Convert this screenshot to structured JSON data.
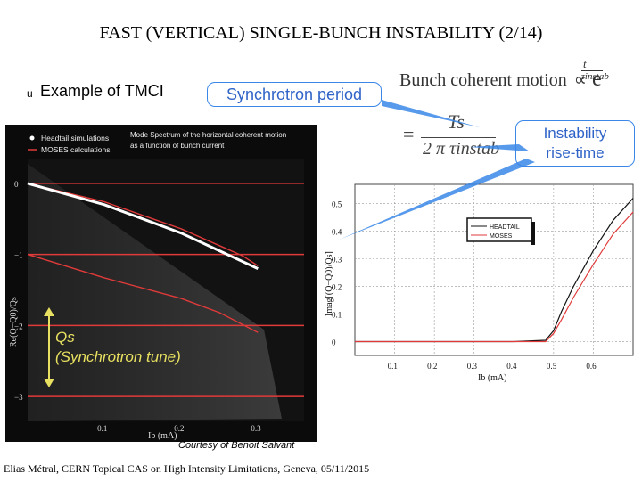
{
  "slide": {
    "title": "FAST (VERTICAL) SINGLE-BUNCH INSTABILITY (2/14)",
    "bullet": "u",
    "example": "Example of TMCI",
    "synchrotron_period": "Synchrotron period",
    "instability_risetime": [
      "Instability",
      "rise-time"
    ],
    "bunch_motion": {
      "text": "Bunch coherent motion",
      "proportional": "∝",
      "exp_base": "e",
      "exp_numerator": "t",
      "exp_denominator": "τinstab"
    },
    "formula": {
      "equals": "=",
      "numerator": "Ts",
      "denominator": "2 π τinstab"
    },
    "qs_label": [
      "Qs",
      "(Synchrotron tune)"
    ],
    "courtesy": "Courtesy of Benoit Salvant",
    "footer": "Elias Métral, CERN Topical CAS on High Intensity Limitations, Geneva, 05/11/2015"
  },
  "chart_data": [
    {
      "type": "scatter",
      "panel": "left",
      "legend": [
        "Headtail simulations",
        "MOSES calculations"
      ],
      "legend_header": [
        "Mode Spectrum of the horizontal coherent motion",
        "as a function of bunch current"
      ],
      "xlabel": "Ib (mA)",
      "ylabel": "Re(Q−Q0)/Qs",
      "xticks": [
        "0.1",
        "0.2",
        "0.3"
      ],
      "yticks": [
        "0",
        "−1",
        "−2",
        "−3"
      ],
      "xlim": [
        0,
        0.36
      ],
      "ylim": [
        -3.35,
        0.35
      ],
      "mode_lines": [
        0,
        -1,
        -2,
        -3
      ],
      "series": [
        {
          "name": "MOSES calculations",
          "x": [
            0,
            0.1,
            0.2,
            0.25,
            0.3
          ],
          "y": [
            -1.0,
            -1.33,
            -1.62,
            -1.82,
            -2.1
          ]
        },
        {
          "name": "MOSES calculations",
          "x": [
            0,
            0.1,
            0.2,
            0.28,
            0.3
          ],
          "y": [
            0.0,
            -0.26,
            -0.64,
            -1.02,
            -1.16
          ]
        },
        {
          "name": "Headtail simulations",
          "x": [
            0,
            0.1,
            0.2,
            0.3
          ],
          "y": [
            0.0,
            -0.3,
            -0.7,
            -1.2
          ]
        }
      ]
    },
    {
      "type": "line",
      "panel": "right",
      "legend": [
        "HEADTAIL",
        "MOSES"
      ],
      "xlabel": "Ib (mA)",
      "ylabel": "Imag[(Q−Q0)/Qs]",
      "xticks": [
        "0.1",
        "0.2",
        "0.3",
        "0.4",
        "0.5",
        "0.6"
      ],
      "yticks": [
        "0",
        "0.1",
        "0.2",
        "0.3",
        "0.4",
        "0.5"
      ],
      "xlim": [
        0,
        0.7
      ],
      "ylim": [
        -0.05,
        0.57
      ],
      "series": [
        {
          "name": "HEADTAIL",
          "x": [
            0,
            0.1,
            0.2,
            0.3,
            0.4,
            0.48,
            0.5,
            0.52,
            0.55,
            0.6,
            0.65,
            0.7
          ],
          "y": [
            0,
            0,
            0,
            0,
            0,
            0.005,
            0.04,
            0.11,
            0.2,
            0.33,
            0.44,
            0.52
          ]
        },
        {
          "name": "MOSES",
          "x": [
            0,
            0.1,
            0.2,
            0.3,
            0.4,
            0.48,
            0.5,
            0.52,
            0.55,
            0.6,
            0.65,
            0.7
          ],
          "y": [
            0,
            0,
            0,
            0,
            0,
            0,
            0.03,
            0.08,
            0.16,
            0.28,
            0.39,
            0.47
          ]
        }
      ]
    }
  ]
}
